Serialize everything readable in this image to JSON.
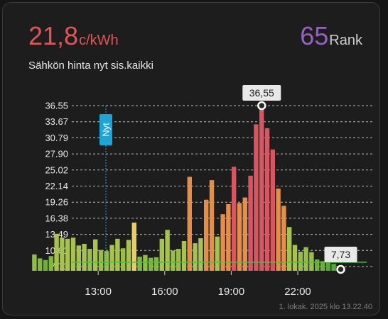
{
  "header": {
    "price_value": "21,8",
    "price_unit": "c/kWh",
    "rank_value": "65",
    "rank_unit": "Rank",
    "subtitle": "Sähkön hinta nyt sis.kaikki"
  },
  "footer": {
    "timestamp": "1. lokak. 2025 klo 13.22.40"
  },
  "colors": {
    "price": "#e05656",
    "rank": "#9a5fc4",
    "now_marker": "#1ea5d6",
    "baseline": "#3cc83c"
  },
  "chart_data": {
    "type": "bar",
    "y_ticks": [
      "36.55",
      "33.67",
      "30.79",
      "27.90",
      "25.02",
      "22.14",
      "19.26",
      "16.38",
      "13.49",
      "10.61",
      "7.73"
    ],
    "ylim": [
      7.73,
      36.55
    ],
    "x_ticks": [
      {
        "label": "13:00",
        "hour": 13
      },
      {
        "label": "16:00",
        "hour": 16
      },
      {
        "label": "19:00",
        "hour": 19
      },
      {
        "label": "22:00",
        "hour": 22
      }
    ],
    "now_label": "Nyt",
    "max_label": "36,55",
    "min_label": "7,73",
    "grid": true,
    "bars": [
      {
        "h": 10.0,
        "v": 9.9,
        "c": "#8fbf40"
      },
      {
        "h": 10.25,
        "v": 9.2,
        "c": "#7fb83a"
      },
      {
        "h": 10.5,
        "v": 8.9,
        "c": "#6cb03a"
      },
      {
        "h": 10.75,
        "v": 9.6,
        "c": "#7fb83a"
      },
      {
        "h": 11.0,
        "v": 13.6,
        "c": "#a7c250"
      },
      {
        "h": 11.25,
        "v": 12.9,
        "c": "#a7c250"
      },
      {
        "h": 11.5,
        "v": 12.7,
        "c": "#a7c250"
      },
      {
        "h": 11.75,
        "v": 12.9,
        "c": "#a7c250"
      },
      {
        "h": 12.0,
        "v": 11.5,
        "c": "#a7c250"
      },
      {
        "h": 12.25,
        "v": 11.8,
        "c": "#a7c250"
      },
      {
        "h": 12.5,
        "v": 10.9,
        "c": "#98bd48"
      },
      {
        "h": 12.75,
        "v": 12.6,
        "c": "#a7c250"
      },
      {
        "h": 13.0,
        "v": 10.7,
        "c": "#98bd48"
      },
      {
        "h": 13.25,
        "v": 10.5,
        "c": "#98bd48"
      },
      {
        "h": 13.5,
        "v": 11.6,
        "c": "#a7c250"
      },
      {
        "h": 13.75,
        "v": 12.7,
        "c": "#a7c250"
      },
      {
        "h": 14.0,
        "v": 11.0,
        "c": "#98bd48"
      },
      {
        "h": 14.25,
        "v": 12.5,
        "c": "#a7c250"
      },
      {
        "h": 14.5,
        "v": 15.6,
        "c": "#e8cc64"
      },
      {
        "h": 14.75,
        "v": 9.5,
        "c": "#7fb83a"
      },
      {
        "h": 15.0,
        "v": 9.8,
        "c": "#8fbf40"
      },
      {
        "h": 15.25,
        "v": 9.3,
        "c": "#7fb83a"
      },
      {
        "h": 15.5,
        "v": 9.4,
        "c": "#7fb83a"
      },
      {
        "h": 15.75,
        "v": 12.7,
        "c": "#a7c250"
      },
      {
        "h": 16.0,
        "v": 14.3,
        "c": "#a7c250"
      },
      {
        "h": 16.25,
        "v": 10.6,
        "c": "#98bd48"
      },
      {
        "h": 16.5,
        "v": 10.9,
        "c": "#98bd48"
      },
      {
        "h": 16.75,
        "v": 12.3,
        "c": "#a7c250"
      },
      {
        "h": 17.0,
        "v": 23.8,
        "c": "#e38f4c"
      },
      {
        "h": 17.25,
        "v": 11.9,
        "c": "#a7c250"
      },
      {
        "h": 17.5,
        "v": 12.8,
        "c": "#a7c250"
      },
      {
        "h": 17.75,
        "v": 19.7,
        "c": "#e38f4c"
      },
      {
        "h": 18.0,
        "v": 23.2,
        "c": "#e38f4c"
      },
      {
        "h": 18.25,
        "v": 13.1,
        "c": "#a7c250"
      },
      {
        "h": 18.5,
        "v": 17.1,
        "c": "#e38f4c"
      },
      {
        "h": 18.75,
        "v": 18.9,
        "c": "#e38f4c"
      },
      {
        "h": 19.0,
        "v": 25.6,
        "c": "#d95560"
      },
      {
        "h": 19.25,
        "v": 19.1,
        "c": "#e38f4c"
      },
      {
        "h": 19.5,
        "v": 20.1,
        "c": "#e38f4c"
      },
      {
        "h": 19.75,
        "v": 24.0,
        "c": "#d95560"
      },
      {
        "h": 20.0,
        "v": 33.2,
        "c": "#d95560"
      },
      {
        "h": 20.25,
        "v": 36.55,
        "c": "#d95560"
      },
      {
        "h": 20.5,
        "v": 32.5,
        "c": "#d95560"
      },
      {
        "h": 20.75,
        "v": 28.7,
        "c": "#d95560"
      },
      {
        "h": 21.0,
        "v": 21.7,
        "c": "#e38f4c"
      },
      {
        "h": 21.25,
        "v": 18.6,
        "c": "#e38f4c"
      },
      {
        "h": 21.5,
        "v": 14.8,
        "c": "#a7c250"
      },
      {
        "h": 21.75,
        "v": 11.6,
        "c": "#a7c250"
      },
      {
        "h": 22.0,
        "v": 10.4,
        "c": "#98bd48"
      },
      {
        "h": 22.25,
        "v": 11.2,
        "c": "#98bd48"
      },
      {
        "h": 22.5,
        "v": 10.3,
        "c": "#98bd48"
      },
      {
        "h": 22.75,
        "v": 9.0,
        "c": "#6cb03a"
      },
      {
        "h": 23.0,
        "v": 8.7,
        "c": "#6cb03a"
      },
      {
        "h": 23.25,
        "v": 8.4,
        "c": "#5aa83a"
      },
      {
        "h": 23.5,
        "v": 8.2,
        "c": "#5aa83a"
      },
      {
        "h": 23.75,
        "v": 7.73,
        "c": "#4ca83a"
      }
    ],
    "now_hour": 13.25,
    "baseline_value": 8.5
  }
}
